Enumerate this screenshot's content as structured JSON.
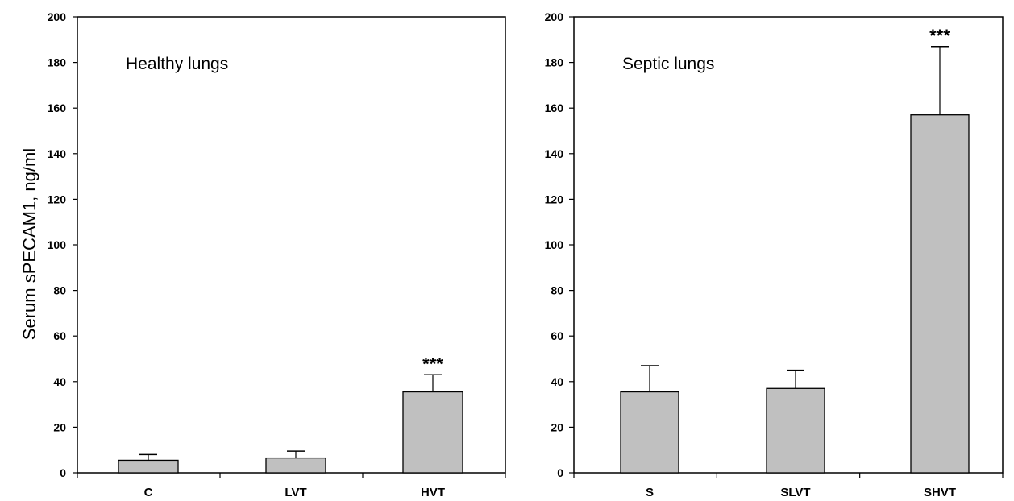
{
  "chart_data": [
    {
      "type": "bar",
      "title": "Healthy lungs",
      "ylabel": "Serum sPECAM1, ng/ml",
      "xlabel": "",
      "ylim": [
        0,
        200
      ],
      "yticks": [
        0,
        20,
        40,
        60,
        80,
        100,
        120,
        140,
        160,
        180,
        200
      ],
      "categories": [
        "C",
        "LVT",
        "HVT"
      ],
      "values": [
        5.5,
        6.5,
        35.5
      ],
      "error_upper": [
        8,
        9.5,
        43
      ],
      "annotations": [
        "",
        "",
        "***"
      ],
      "bar_color": "#c0c0c0"
    },
    {
      "type": "bar",
      "title": "Septic lungs",
      "xlabel": "",
      "ylabel": "",
      "ylim": [
        0,
        200
      ],
      "yticks": [
        0,
        20,
        40,
        60,
        80,
        100,
        120,
        140,
        160,
        180,
        200
      ],
      "categories": [
        "S",
        "SLVT",
        "SHVT"
      ],
      "values": [
        35.5,
        37,
        157
      ],
      "error_upper": [
        47,
        45,
        187
      ],
      "annotations": [
        "",
        "",
        "***"
      ],
      "bar_color": "#c0c0c0"
    }
  ]
}
